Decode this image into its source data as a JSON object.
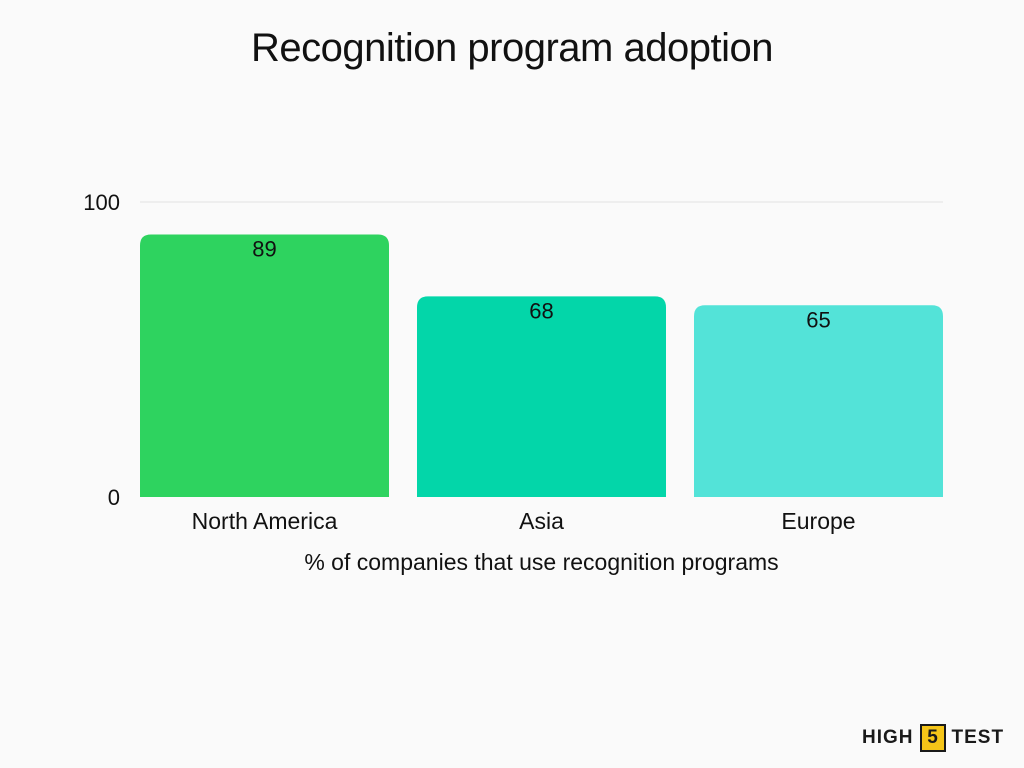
{
  "chart_data": {
    "type": "bar",
    "title": "Recognition program adoption",
    "xlabel": "% of companies that use recognition programs",
    "ylabel": "",
    "ylim": [
      0,
      100
    ],
    "y_ticks": [
      0,
      100
    ],
    "grid": true,
    "legend": "none",
    "categories": [
      "North America",
      "Asia",
      "Europe"
    ],
    "values": [
      89,
      68,
      65
    ],
    "data_labels": [
      "89",
      "68",
      "65"
    ],
    "colors": [
      "#2ed35f",
      "#03d6a9",
      "#53e3d8"
    ]
  },
  "logo": {
    "text_left": "HIGH",
    "text_mid": "5",
    "text_right": "TEST"
  }
}
